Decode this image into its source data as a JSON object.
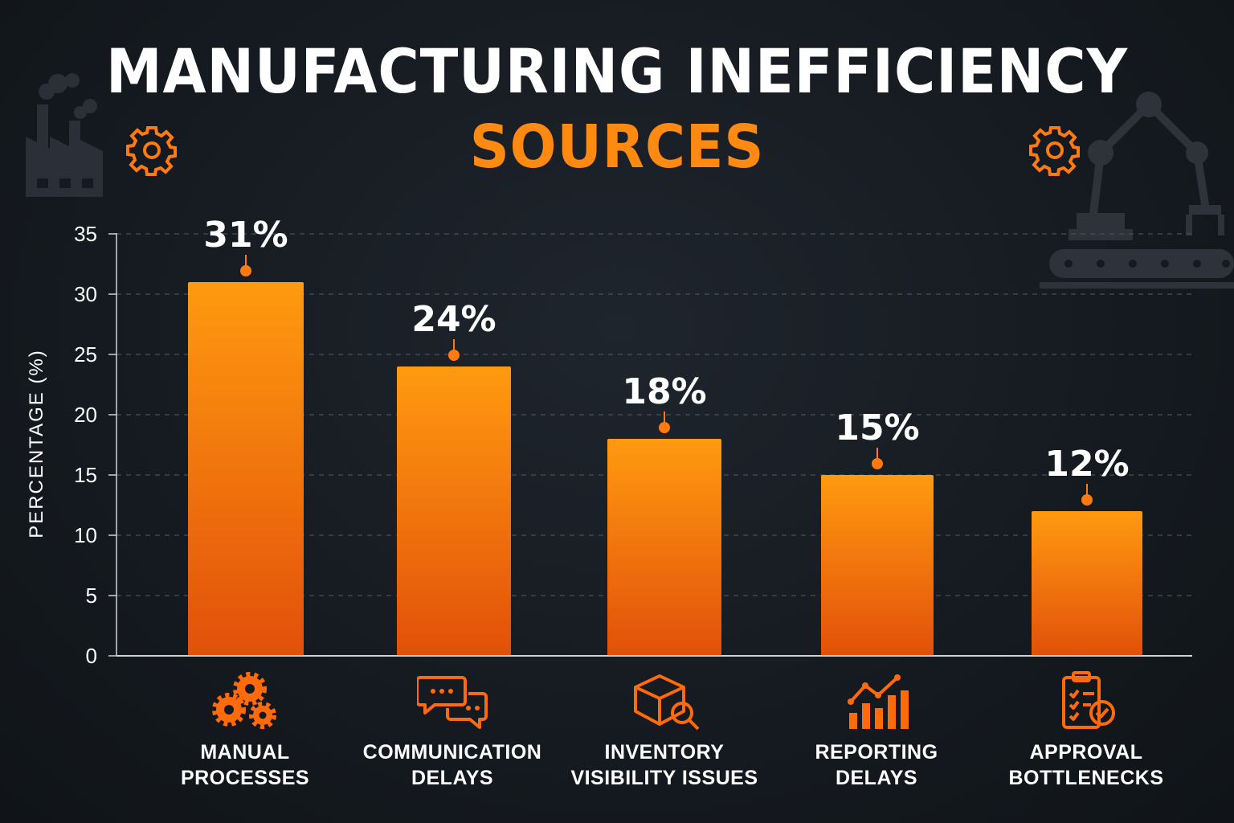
{
  "title": {
    "line1": "MANUFACTURING INEFFICIENCY",
    "line2": "SOURCES"
  },
  "colors": {
    "accent": "#ff8a12",
    "bar_top": "#ff9a10",
    "bar_bottom": "#e2500a",
    "background": "#151a20",
    "grid": "#4a5058"
  },
  "chart_data": {
    "type": "bar",
    "categories": [
      "MANUAL PROCESSES",
      "COMMUNICATION DELAYS",
      "INVENTORY VISIBILITY ISSUES",
      "REPORTING DELAYS",
      "APPROVAL BOTTLENECKS"
    ],
    "category_lines": [
      [
        "MANUAL",
        "PROCESSES"
      ],
      [
        "COMMUNICATION",
        "DELAYS"
      ],
      [
        "INVENTORY",
        "VISIBILITY ISSUES"
      ],
      [
        "REPORTING",
        "DELAYS"
      ],
      [
        "APPROVAL",
        "BOTTLENECKS"
      ]
    ],
    "values": [
      31,
      24,
      18,
      15,
      12
    ],
    "data_labels": [
      "31%",
      "24%",
      "18%",
      "15%",
      "12%"
    ],
    "ylabel": "PERCENTAGE (%)",
    "ylim": [
      0,
      35
    ],
    "yticks": [
      0,
      5,
      10,
      15,
      20,
      25,
      30,
      35
    ],
    "grid": true,
    "icons": [
      "gears-icon",
      "chat-bubbles-icon",
      "box-search-icon",
      "bar-chart-trend-icon",
      "clipboard-check-icon"
    ]
  }
}
